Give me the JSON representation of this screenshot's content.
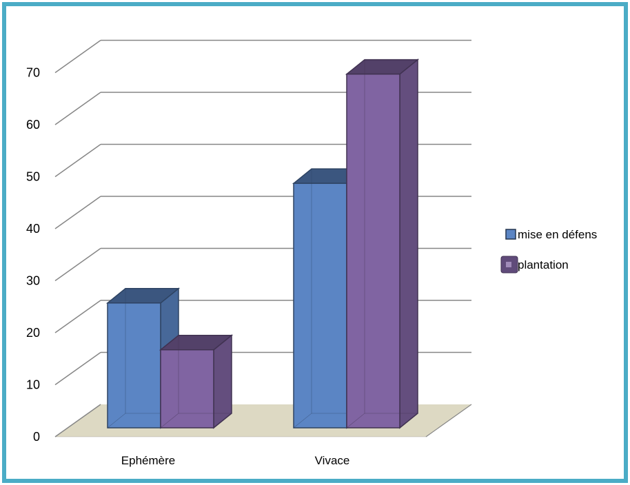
{
  "chart_data": {
    "type": "bar",
    "categories": [
      "Ephémère",
      "Vivace"
    ],
    "series": [
      {
        "name": "mise en défens",
        "values": [
          24,
          47
        ],
        "color": "#5b85c4"
      },
      {
        "name": "plantation",
        "values": [
          15,
          68
        ],
        "color": "#8064a2"
      }
    ],
    "yticks": [
      "0",
      "10",
      "20",
      "30",
      "40",
      "50",
      "60",
      "70"
    ],
    "ylim": [
      0,
      70
    ],
    "grid": true,
    "legend": "right",
    "style": "3d-column"
  },
  "colors": {
    "frame": "#4bacc6",
    "floor": "#ddd9c3",
    "grid": "#868686"
  }
}
